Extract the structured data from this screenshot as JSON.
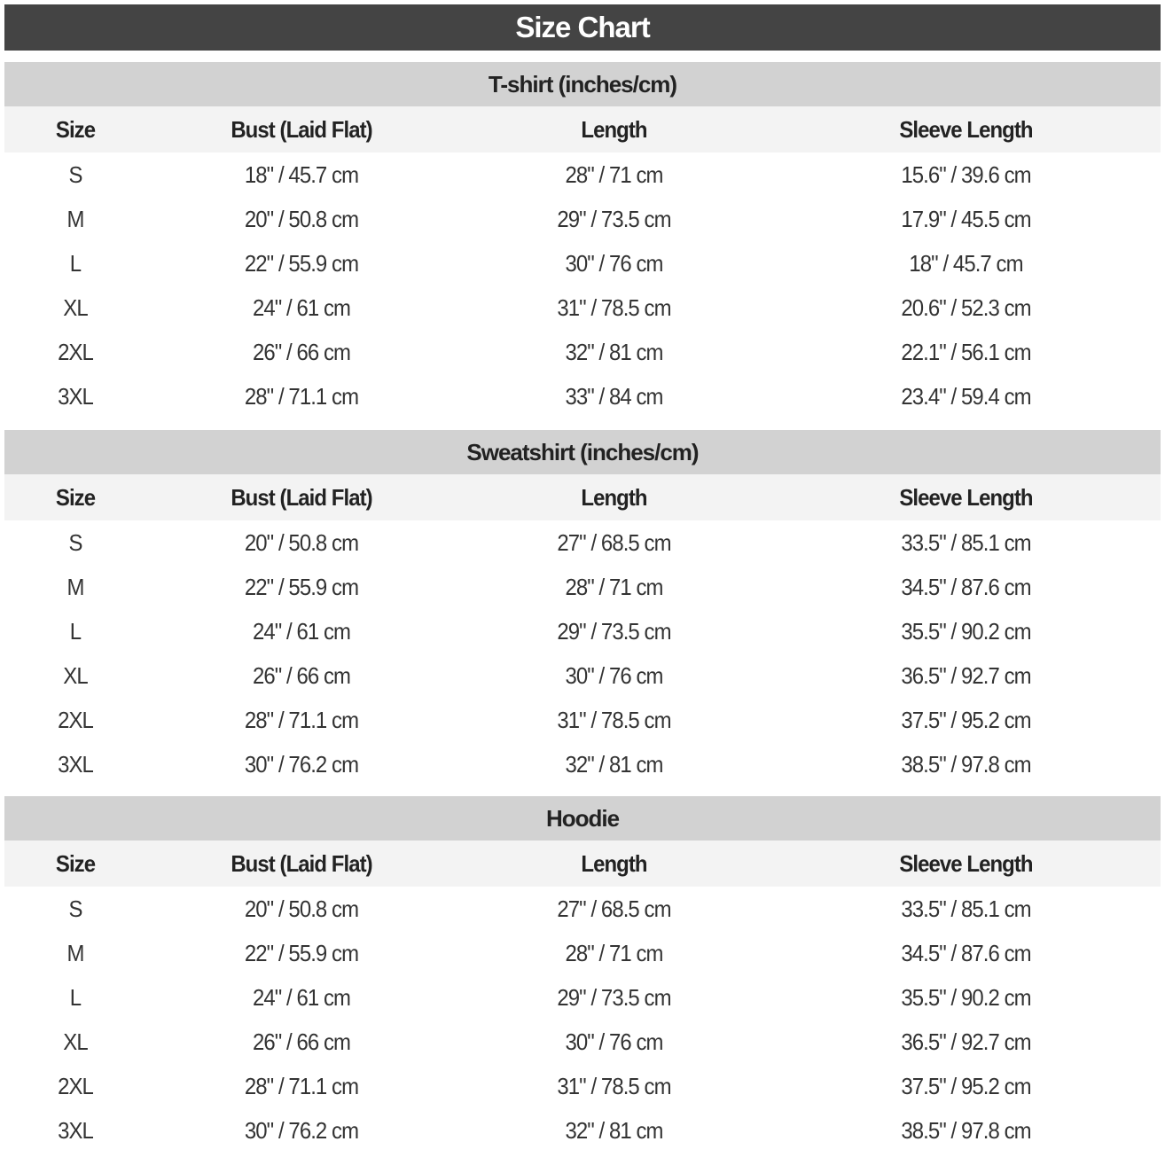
{
  "title": "Size Chart",
  "columns": [
    "Size",
    "Bust (Laid Flat)",
    "Length",
    "Sleeve Length"
  ],
  "sections": [
    {
      "title": "T-shirt (inches/cm)",
      "rows": [
        [
          "S",
          "18\" / 45.7 cm",
          "28\" / 71 cm",
          "15.6\" / 39.6 cm"
        ],
        [
          "M",
          "20\" / 50.8 cm",
          "29\" / 73.5 cm",
          "17.9\" / 45.5 cm"
        ],
        [
          "L",
          "22\" / 55.9 cm",
          "30\" / 76 cm",
          "18\" / 45.7 cm"
        ],
        [
          "XL",
          "24\" / 61 cm",
          "31\" / 78.5 cm",
          "20.6\" / 52.3 cm"
        ],
        [
          "2XL",
          "26\" / 66 cm",
          "32\" / 81 cm",
          "22.1\" / 56.1 cm"
        ],
        [
          "3XL",
          "28\" / 71.1 cm",
          "33\" / 84 cm",
          "23.4\" / 59.4 cm"
        ]
      ]
    },
    {
      "title": "Sweatshirt (inches/cm)",
      "rows": [
        [
          "S",
          "20\" / 50.8 cm",
          "27\" / 68.5 cm",
          "33.5\" / 85.1 cm"
        ],
        [
          "M",
          "22\" / 55.9 cm",
          "28\" / 71 cm",
          "34.5\" / 87.6 cm"
        ],
        [
          "L",
          "24\" / 61 cm",
          "29\" / 73.5 cm",
          "35.5\" / 90.2 cm"
        ],
        [
          "XL",
          "26\" / 66 cm",
          "30\" / 76 cm",
          "36.5\" / 92.7 cm"
        ],
        [
          "2XL",
          "28\" / 71.1 cm",
          "31\" / 78.5 cm",
          "37.5\" / 95.2 cm"
        ],
        [
          "3XL",
          "30\" / 76.2 cm",
          "32\" / 81 cm",
          "38.5\" / 97.8 cm"
        ]
      ]
    },
    {
      "title": "Hoodie",
      "rows": [
        [
          "S",
          "20\" / 50.8 cm",
          "27\" / 68.5 cm",
          "33.5\" / 85.1 cm"
        ],
        [
          "M",
          "22\" / 55.9 cm",
          "28\" / 71 cm",
          "34.5\" / 87.6 cm"
        ],
        [
          "L",
          "24\" / 61 cm",
          "29\" / 73.5 cm",
          "35.5\" / 90.2 cm"
        ],
        [
          "XL",
          "26\" / 66 cm",
          "30\" / 76 cm",
          "36.5\" / 92.7 cm"
        ],
        [
          "2XL",
          "28\" / 71.1 cm",
          "31\" / 78.5 cm",
          "37.5\" / 95.2 cm"
        ],
        [
          "3XL",
          "30\" / 76.2 cm",
          "32\" / 81 cm",
          "38.5\" / 97.8 cm"
        ]
      ]
    }
  ],
  "colors": {
    "title_bar": "#444444",
    "section_header": "#d2d2d2",
    "column_header": "#f3f3f3"
  }
}
